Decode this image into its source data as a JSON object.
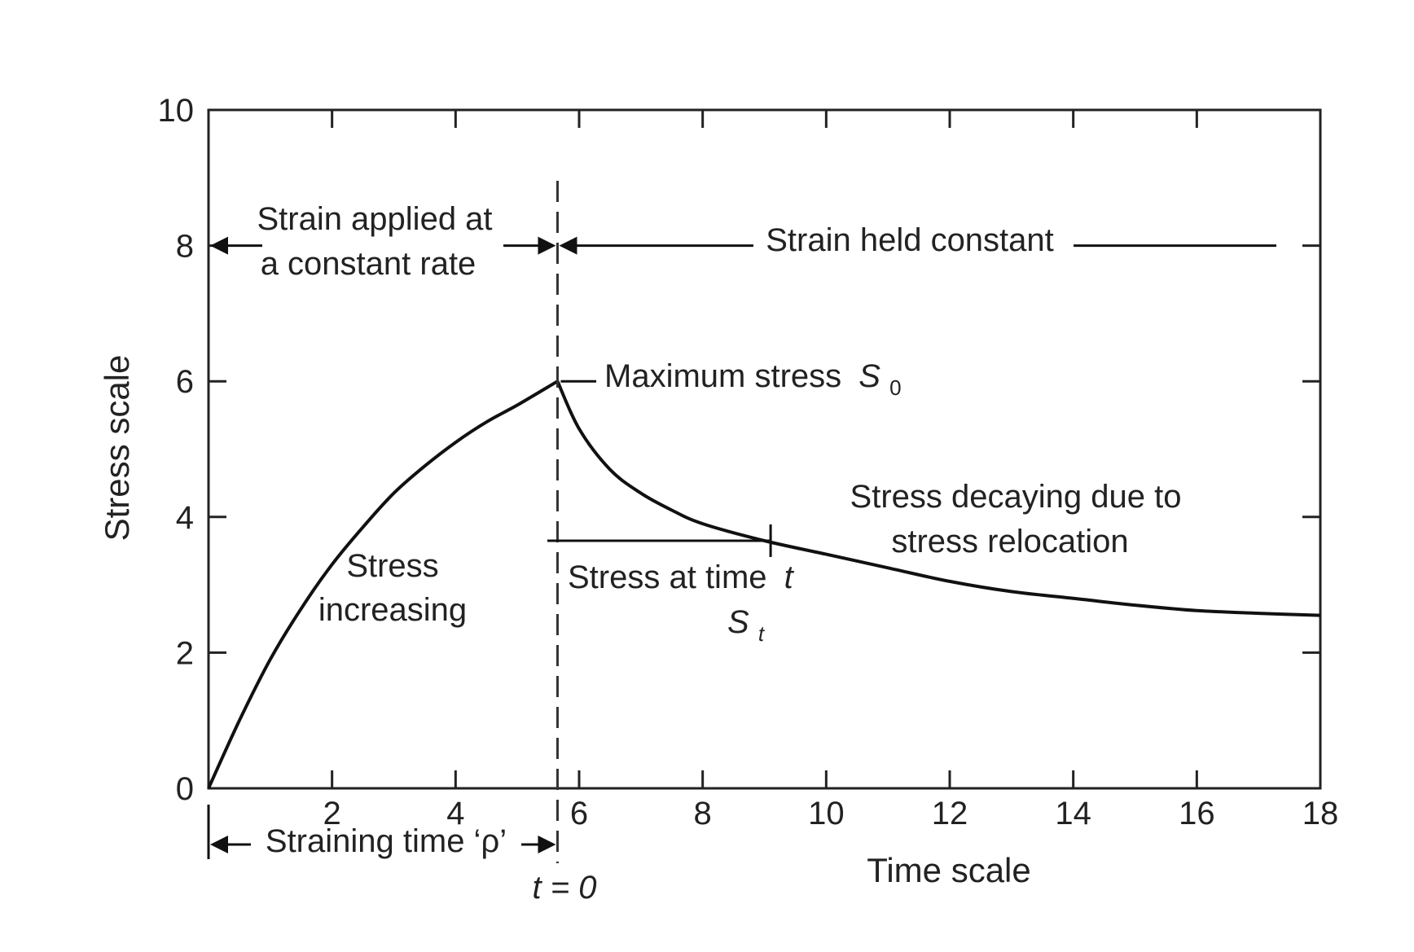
{
  "chart_data": {
    "type": "line",
    "title": "",
    "xlabel": "Time scale",
    "ylabel": "Stress scale",
    "xlim": [
      0,
      18
    ],
    "ylim": [
      0,
      10
    ],
    "xticks": [
      2,
      4,
      6,
      8,
      10,
      12,
      14,
      16,
      18
    ],
    "yticks": [
      0,
      2,
      4,
      6,
      8,
      10
    ],
    "x_tick_labels": [
      "2",
      "4",
      "6",
      "8",
      "10",
      "12",
      "14",
      "16",
      "18"
    ],
    "y_tick_labels": [
      "0",
      "2",
      "4",
      "6",
      "8",
      "10"
    ],
    "grid": false,
    "curve": {
      "x": [
        0,
        0.5,
        1,
        1.5,
        2,
        2.5,
        3,
        3.5,
        4,
        4.5,
        5,
        5.65,
        6,
        6.5,
        7,
        7.5,
        8,
        9,
        10,
        11,
        12,
        13,
        14,
        15,
        16,
        17,
        18
      ],
      "y": [
        0,
        1.0,
        1.9,
        2.65,
        3.3,
        3.85,
        4.35,
        4.75,
        5.1,
        5.4,
        5.65,
        6.0,
        5.3,
        4.7,
        4.35,
        4.1,
        3.9,
        3.65,
        3.45,
        3.25,
        3.05,
        2.9,
        2.8,
        2.7,
        2.62,
        2.58,
        2.55
      ]
    },
    "peak": {
      "x": 5.65,
      "y": 6.0
    },
    "stress_at_t": {
      "x": 9.1,
      "y": 3.65
    },
    "annotations": {
      "strain_applied_line1": "Strain applied at",
      "strain_applied_line2": "a constant rate",
      "strain_held": "Strain held constant",
      "max_stress": "Maximum stress",
      "max_stress_symbol": "S",
      "max_stress_sub": "0",
      "stress_increasing_line1": "Stress",
      "stress_increasing_line2": "increasing",
      "stress_at_time": "Stress at time",
      "stress_at_time_var": "t",
      "stress_at_time_symbol": "S",
      "stress_at_time_sub": "t",
      "decaying_line1": "Stress decaying due to",
      "decaying_line2": "stress relocation",
      "straining_time": "Straining time ‘ρ’",
      "t_zero": "t = 0"
    },
    "colors": {
      "line": "#111111",
      "frame": "#222222"
    }
  }
}
